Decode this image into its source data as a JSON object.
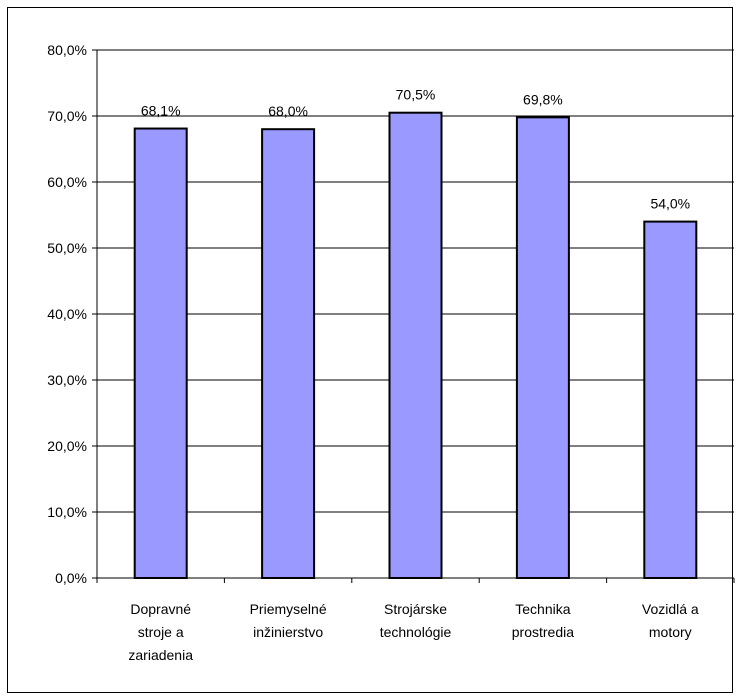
{
  "chart_data": {
    "type": "bar",
    "categories": [
      [
        "Dopravné",
        "stroje a",
        "zariadenia"
      ],
      [
        "Priemyselné",
        "inžinierstvo"
      ],
      [
        "Strojárske",
        "technológie"
      ],
      [
        "Technika",
        "prostredia"
      ],
      [
        "Vozidlá a",
        "motory"
      ]
    ],
    "values": [
      68.1,
      68.0,
      70.5,
      69.8,
      54.0
    ],
    "value_labels": [
      "68,1%",
      "68,0%",
      "70,5%",
      "69,8%",
      "54,0%"
    ],
    "y_ticks": [
      "0,0%",
      "10,0%",
      "20,0%",
      "30,0%",
      "40,0%",
      "50,0%",
      "60,0%",
      "70,0%",
      "80,0%"
    ],
    "ylim": [
      0,
      80
    ],
    "grid": true,
    "legend": false,
    "bar_color": "#9999ff",
    "bar_border": "#000000"
  }
}
